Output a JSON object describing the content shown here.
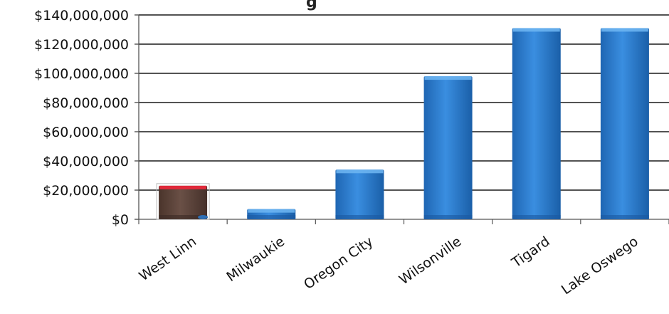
{
  "chart_data": {
    "type": "bar",
    "title_fragment": "g",
    "categories": [
      "West Linn",
      "Milwaukie",
      "Oregon City",
      "Wilsonville",
      "Tigard",
      "Lake Oswego"
    ],
    "values": [
      23000000,
      7000000,
      34000000,
      98000000,
      131000000,
      131000000
    ],
    "bar_colors": [
      "#5a4238",
      "#2f7fd0",
      "#2f7fd0",
      "#2f7fd0",
      "#2f7fd0",
      "#2f7fd0"
    ],
    "highlight_top_color": "#e0293a",
    "ylim": [
      0,
      140000000
    ],
    "yticks": [
      0,
      20000000,
      40000000,
      60000000,
      80000000,
      100000000,
      120000000,
      140000000
    ],
    "ytick_labels": [
      "$0",
      "$20,000,000",
      "$40,000,000",
      "$60,000,000",
      "$80,000,000",
      "$100,000,000",
      "$120,000,000",
      "$140,000,000"
    ],
    "grid": true,
    "legend": "none"
  }
}
